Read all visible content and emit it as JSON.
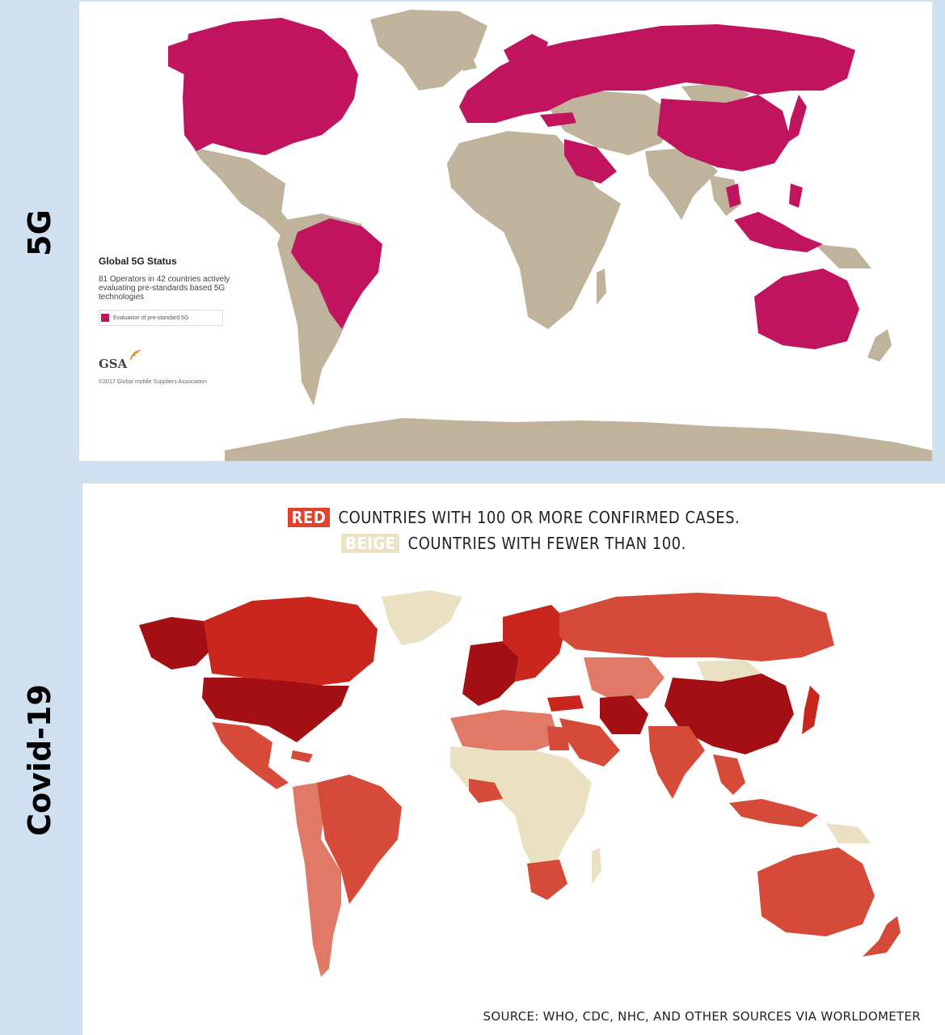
{
  "labels": {
    "top": "5G",
    "bottom": "Covid-19"
  },
  "map_5g": {
    "legend_title": "Global 5G Status",
    "description": "81 Operators in 42 countries actively evaluating pre-standards based 5G technologies",
    "key_label": "Evaluation of pre-standard 5G",
    "logo_text": "GSA",
    "copyright": "©2017 Global mobile Suppliers Association",
    "colors": {
      "evaluating": "#c0145f",
      "other": "#bfb39b",
      "background": "#ffffff"
    },
    "highlighted_regions": [
      "Canada",
      "United States",
      "Brazil",
      "Europe",
      "Russia",
      "China",
      "Saudi Arabia",
      "Turkey",
      "Southeast Asia",
      "Japan",
      "South Korea",
      "Australia",
      "Indonesia"
    ]
  },
  "map_covid": {
    "red_tag": "RED",
    "red_text": "COUNTRIES WITH 100 OR MORE CONFIRMED CASES.",
    "beige_tag": "BEIGE",
    "beige_text": "COUNTRIES WITH FEWER THAN 100.",
    "source": "SOURCE: WHO, CDC, NHC, AND OTHER SOURCES VIA WORLDOMETER",
    "colors": {
      "darkest": "#a30f12",
      "dark": "#c9261e",
      "mid": "#d54a39",
      "light": "#e07a66",
      "beige": "#e9e1c2",
      "no_data": "#d8d8d8"
    }
  }
}
